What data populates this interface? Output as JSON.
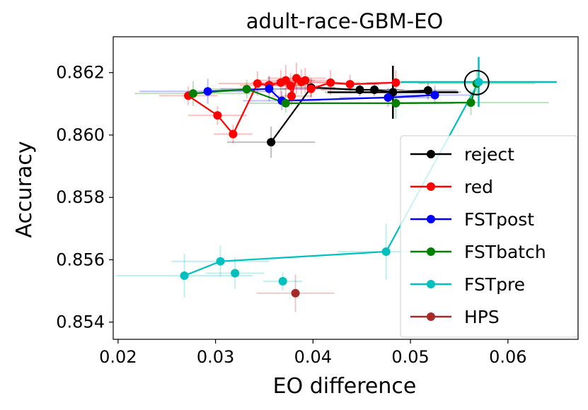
{
  "chart_data": {
    "type": "scatter",
    "title": "adult-race-GBM-EO",
    "xlabel": "EO difference",
    "ylabel": "Accuracy",
    "xlim": [
      0.0195,
      0.0672
    ],
    "ylim": [
      0.85345,
      0.86315
    ],
    "xticks": [
      0.02,
      0.03,
      0.04,
      0.05,
      0.06
    ],
    "xtick_labels": [
      "0.02",
      "0.03",
      "0.04",
      "0.05",
      "0.06"
    ],
    "yticks": [
      0.854,
      0.856,
      0.858,
      0.86,
      0.862
    ],
    "ytick_labels": [
      "0.854",
      "0.856",
      "0.858",
      "0.860",
      "0.862"
    ],
    "grid": false,
    "legend_position": "lower-right",
    "series": [
      {
        "name": "reject",
        "color": "#000000",
        "line": true,
        "points": [
          {
            "x": 0.0357,
            "y": 0.85977,
            "xerr": 0.0045,
            "yerr": 0.0005
          },
          {
            "x": 0.0398,
            "y": 0.86152,
            "xerr": 0.0025,
            "yerr": 0.0003
          },
          {
            "x": 0.0448,
            "y": 0.86145,
            "xerr": 0.004,
            "yerr": 0.0002
          },
          {
            "x": 0.0463,
            "y": 0.86145,
            "xerr": 0.003,
            "yerr": 0.0002
          },
          {
            "x": 0.0482,
            "y": 0.86137,
            "xerr": 0.007,
            "yerr": 0.0008
          },
          {
            "x": 0.0518,
            "y": 0.86143,
            "xerr": 0.003,
            "yerr": 0.0003
          }
        ]
      },
      {
        "name": "red",
        "color": "#ff0000",
        "line": true,
        "points": [
          {
            "x": 0.0272,
            "y": 0.86126,
            "xerr": 0.003,
            "yerr": 0.0003
          },
          {
            "x": 0.0302,
            "y": 0.86063,
            "xerr": 0.003,
            "yerr": 0.0003
          },
          {
            "x": 0.0318,
            "y": 0.86003,
            "xerr": 0.002,
            "yerr": 0.0003
          },
          {
            "x": 0.0343,
            "y": 0.86165,
            "xerr": 0.004,
            "yerr": 0.0004
          },
          {
            "x": 0.0355,
            "y": 0.8616,
            "xerr": 0.003,
            "yerr": 0.0003
          },
          {
            "x": 0.0367,
            "y": 0.86168,
            "xerr": 0.003,
            "yerr": 0.0004
          },
          {
            "x": 0.0372,
            "y": 0.86175,
            "xerr": 0.003,
            "yerr": 0.0005
          },
          {
            "x": 0.0377,
            "y": 0.86158,
            "xerr": 0.003,
            "yerr": 0.0004
          },
          {
            "x": 0.0378,
            "y": 0.86125,
            "xerr": 0.002,
            "yerr": 0.0003
          },
          {
            "x": 0.0383,
            "y": 0.86182,
            "xerr": 0.003,
            "yerr": 0.0005
          },
          {
            "x": 0.0388,
            "y": 0.8617,
            "xerr": 0.003,
            "yerr": 0.0004
          },
          {
            "x": 0.0392,
            "y": 0.86175,
            "xerr": 0.003,
            "yerr": 0.0004
          },
          {
            "x": 0.0398,
            "y": 0.86148,
            "xerr": 0.003,
            "yerr": 0.0003
          },
          {
            "x": 0.0418,
            "y": 0.86168,
            "xerr": 0.003,
            "yerr": 0.0004
          },
          {
            "x": 0.0438,
            "y": 0.86163,
            "xerr": 0.003,
            "yerr": 0.0003
          },
          {
            "x": 0.0485,
            "y": 0.86168,
            "xerr": 0.003,
            "yerr": 0.0004
          }
        ]
      },
      {
        "name": "FSTpost",
        "color": "#0000ff",
        "line": true,
        "points": [
          {
            "x": 0.0292,
            "y": 0.8614,
            "xerr": 0.007,
            "yerr": 0.0004
          },
          {
            "x": 0.0355,
            "y": 0.86148,
            "xerr": 0.005,
            "yerr": 0.0004
          },
          {
            "x": 0.0368,
            "y": 0.8611,
            "xerr": 0.004,
            "yerr": 0.0003
          },
          {
            "x": 0.0477,
            "y": 0.8612,
            "xerr": 0.005,
            "yerr": 0.0003
          },
          {
            "x": 0.0525,
            "y": 0.86128,
            "xerr": 0.004,
            "yerr": 0.0003
          }
        ]
      },
      {
        "name": "FSTbatch",
        "color": "#008000",
        "line": true,
        "points": [
          {
            "x": 0.0277,
            "y": 0.86133,
            "xerr": 0.006,
            "yerr": 0.0004
          },
          {
            "x": 0.0332,
            "y": 0.86147,
            "xerr": 0.004,
            "yerr": 0.0003
          },
          {
            "x": 0.0372,
            "y": 0.86102,
            "xerr": 0.004,
            "yerr": 0.0003
          },
          {
            "x": 0.0485,
            "y": 0.86102,
            "xerr": 0.006,
            "yerr": 0.0005
          },
          {
            "x": 0.0562,
            "y": 0.86104,
            "xerr": 0.008,
            "yerr": 0.0004
          },
          {
            "x": 0.0568,
            "y": 0.86165,
            "xerr": 0.006,
            "yerr": 0.0004
          }
        ]
      },
      {
        "name": "FSTpre",
        "color": "#00bfbf",
        "line": false,
        "points": [
          {
            "x": 0.0268,
            "y": 0.85549,
            "xerr": 0.007,
            "yerr": 0.0007
          },
          {
            "x": 0.0305,
            "y": 0.85595,
            "xerr": 0.005,
            "yerr": 0.0005
          },
          {
            "x": 0.032,
            "y": 0.85557,
            "xerr": 0.003,
            "yerr": 0.0005
          },
          {
            "x": 0.0369,
            "y": 0.85531,
            "xerr": 0.002,
            "yerr": 0.0003
          },
          {
            "x": 0.0475,
            "y": 0.85626,
            "xerr": 0.005,
            "yerr": 0.0009
          },
          {
            "x": 0.057,
            "y": 0.8617,
            "xerr": 0.008,
            "yerr": 0.0008
          }
        ],
        "path": [
          {
            "x": 0.0268,
            "y": 0.85549
          },
          {
            "x": 0.0305,
            "y": 0.85595
          },
          {
            "x": 0.0475,
            "y": 0.85626
          },
          {
            "x": 0.057,
            "y": 0.8617
          }
        ]
      },
      {
        "name": "HPS",
        "color": "#a52a2a",
        "line": true,
        "points": [
          {
            "x": 0.0382,
            "y": 0.85493,
            "xerr": 0.004,
            "yerr": 0.0006
          }
        ]
      }
    ],
    "annotations": [
      {
        "type": "highlight-circle",
        "x": 0.0568,
        "y": 0.86168,
        "color": "#000000"
      }
    ]
  }
}
